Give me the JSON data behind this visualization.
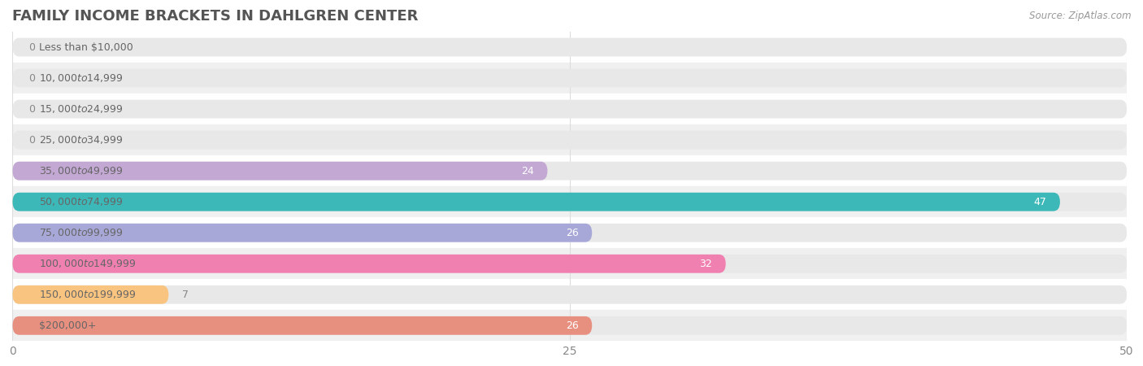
{
  "title": "FAMILY INCOME BRACKETS IN DAHLGREN CENTER",
  "source": "Source: ZipAtlas.com",
  "categories": [
    "Less than $10,000",
    "$10,000 to $14,999",
    "$15,000 to $24,999",
    "$25,000 to $34,999",
    "$35,000 to $49,999",
    "$50,000 to $74,999",
    "$75,000 to $99,999",
    "$100,000 to $149,999",
    "$150,000 to $199,999",
    "$200,000+"
  ],
  "values": [
    0,
    0,
    0,
    0,
    24,
    47,
    26,
    32,
    7,
    26
  ],
  "bar_colors": [
    "#F4879A",
    "#F9C480",
    "#F4A8A0",
    "#A8C0E8",
    "#C3A8D4",
    "#3DB8B8",
    "#A8A8D8",
    "#F080B0",
    "#F9C480",
    "#E89080"
  ],
  "xlim": [
    0,
    50
  ],
  "xticks": [
    0,
    25,
    50
  ],
  "figure_bg": "#ffffff",
  "row_bg_odd": "#f0f0f0",
  "row_bg_even": "#ffffff",
  "bar_bg_color": "#e8e8e8",
  "title_fontsize": 13,
  "label_fontsize": 9,
  "value_fontsize": 9,
  "bar_height": 0.6,
  "label_color": "#666666",
  "value_color_inside": "#ffffff",
  "value_color_outside": "#888888",
  "title_color": "#555555",
  "source_color": "#999999",
  "xtick_color": "#888888",
  "grid_color": "#dddddd"
}
